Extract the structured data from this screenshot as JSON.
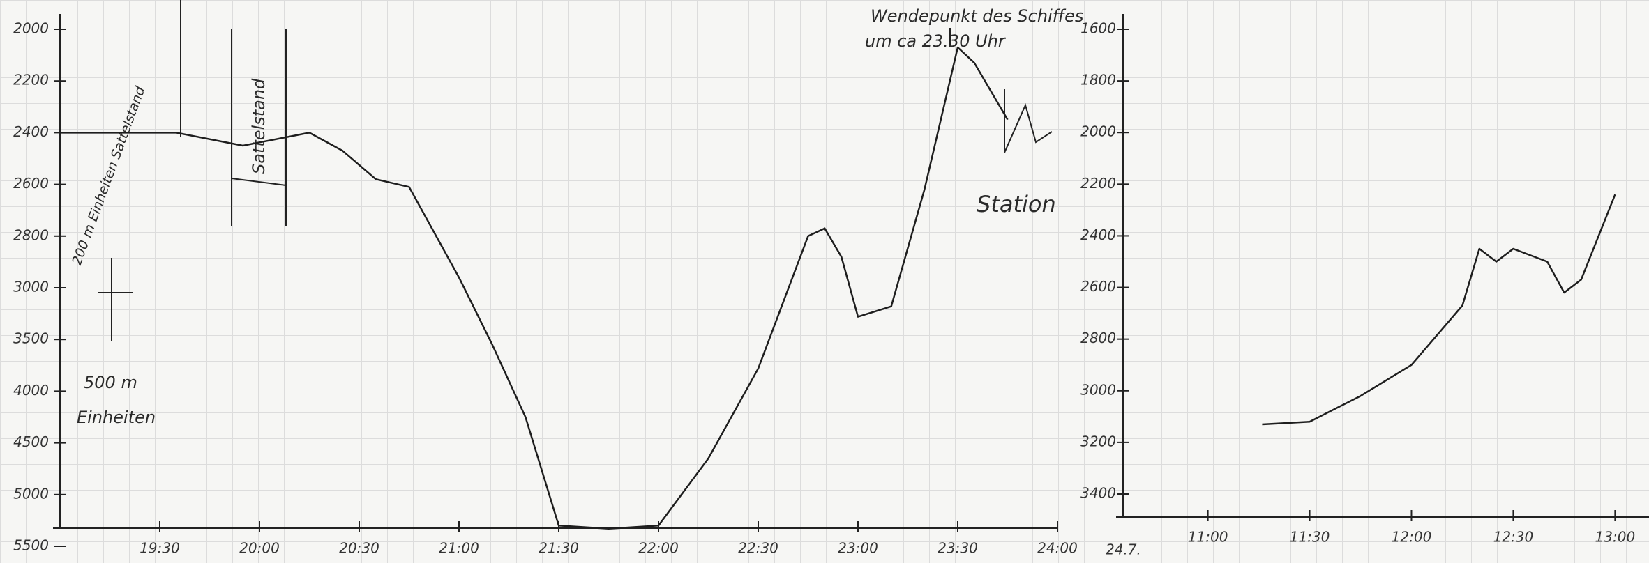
{
  "chart_data": [
    {
      "type": "line",
      "x": [
        "19:00",
        "19:35",
        "19:55",
        "20:15",
        "20:25",
        "20:35",
        "20:45",
        "21:00",
        "21:10",
        "21:20",
        "21:30",
        "21:45",
        "22:00",
        "22:15",
        "22:30",
        "22:45",
        "22:50",
        "22:55",
        "23:00",
        "23:10",
        "23:20",
        "23:30",
        "23:35",
        "23:45"
      ],
      "series": [
        {
          "color": "#1e1e1e",
          "values": [
            2400,
            2400,
            2450,
            2400,
            2470,
            2580,
            2610,
            2960,
            3550,
            4250,
            5300,
            5330,
            5300,
            4650,
            3780,
            2800,
            2770,
            2880,
            3280,
            3180,
            2620,
            2070,
            2130,
            2350
          ]
        }
      ],
      "xlim": [
        "19:00",
        "24:00"
      ],
      "xticks": [
        "19:30",
        "20:00",
        "20:30",
        "21:00",
        "21:30",
        "22:00",
        "22:30",
        "23:00",
        "23:30",
        "24:00"
      ],
      "ylim": [
        2000,
        5500
      ],
      "yticks": [
        2000,
        2200,
        2400,
        2600,
        2800,
        3000,
        3500,
        4000,
        4500,
        5000,
        5500
      ],
      "annotations": [
        "Wendepunkt des Schiffes",
        "um ca 23.30 Uhr",
        "Station",
        "Sattelstand",
        "200 m Einheiten Sattelstand",
        "500 m",
        "Einheiten"
      ]
    },
    {
      "type": "line",
      "x": [
        "11:16",
        "11:30",
        "11:45",
        "12:00",
        "12:15",
        "12:20",
        "12:25",
        "12:30",
        "12:40",
        "12:45",
        "12:50",
        "13:00"
      ],
      "series": [
        {
          "color": "#1e1e1e",
          "values": [
            3130,
            3120,
            3020,
            2900,
            2670,
            2450,
            2500,
            2450,
            2500,
            2620,
            2570,
            2240
          ]
        }
      ],
      "xlim": [
        "10:35",
        "13:10"
      ],
      "xticks": [
        "11:00",
        "11:30",
        "12:00",
        "12:30",
        "13:00"
      ],
      "ylim": [
        1600,
        3400
      ],
      "yticks": [
        1600,
        1800,
        2000,
        2200,
        2400,
        2600,
        2800,
        3000,
        3200,
        3400
      ],
      "annotations": [
        "24.7."
      ]
    }
  ]
}
